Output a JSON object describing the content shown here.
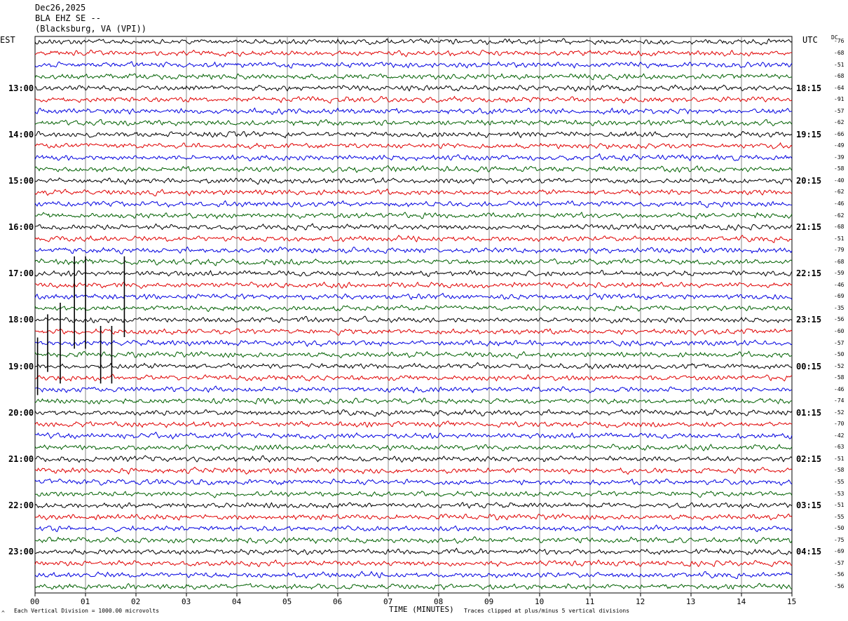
{
  "header": {
    "date": "Dec26,2025",
    "station": "BLA EHZ SE --",
    "location": "(Blacksburg, VA (VPI))"
  },
  "left_axis_title": "EST",
  "right_axis_title": "UTC",
  "dc_title": "DC",
  "footer": {
    "scale_note": "Each Vertical Division = 1000.00 microvolts",
    "xlabel": "TIME (MINUTES)",
    "clip_note": "Traces clipped at plus/minus 5 vertical divisions",
    "corner_mark": "^"
  },
  "colors": {
    "trace_cycle": [
      "#000000",
      "#e00000",
      "#0000e0",
      "#006000"
    ],
    "grid": "#888888"
  },
  "chart_data": {
    "type": "line",
    "subtype": "helicorder",
    "xlabel": "TIME (MINUTES)",
    "xlim": [
      0,
      15
    ],
    "x_ticks": [
      "00",
      "01",
      "02",
      "03",
      "04",
      "05",
      "06",
      "07",
      "08",
      "09",
      "10",
      "11",
      "12",
      "13",
      "14",
      "15"
    ],
    "trace_count": 48,
    "left_hour_labels": [
      "13:00",
      "14:00",
      "15:00",
      "16:00",
      "17:00",
      "18:00",
      "19:00",
      "20:00",
      "21:00",
      "22:00",
      "23:00"
    ],
    "right_hour_labels": [
      "18:15",
      "19:15",
      "20:15",
      "21:15",
      "22:15",
      "23:15",
      "00:15",
      "01:15",
      "02:15",
      "03:15",
      "04:15"
    ],
    "dc_offsets": [
      -76,
      -68,
      -51,
      -68,
      -64,
      -91,
      -57,
      -62,
      -66,
      -49,
      -39,
      -58,
      -40,
      -62,
      -46,
      -62,
      -68,
      -51,
      -79,
      -68,
      -59,
      -46,
      -69,
      -35,
      -56,
      -60,
      -57,
      -50,
      -52,
      -58,
      -46,
      -74,
      -52,
      -70,
      -42,
      -63,
      -51,
      -58,
      -55,
      -53,
      -51,
      -55,
      -50,
      -75,
      -69,
      -57,
      -56,
      -56
    ],
    "grid": true
  }
}
